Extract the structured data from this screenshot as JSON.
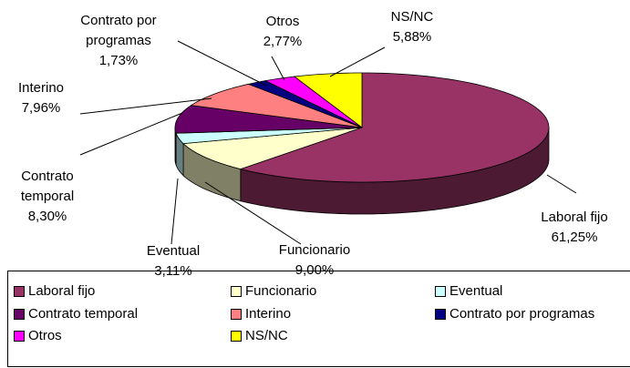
{
  "chart_data": {
    "type": "pie",
    "categories": [
      "Laboral fijo",
      "Funcionario",
      "Eventual",
      "Contrato temporal",
      "Interino",
      "Contrato por programas",
      "Otros",
      "NS/NC"
    ],
    "values": [
      61.25,
      9.0,
      3.11,
      8.3,
      7.96,
      1.73,
      2.77,
      5.88
    ],
    "value_labels": [
      "61,25%",
      "9,00%",
      "3,11%",
      "8,30%",
      "7,96%",
      "1,73%",
      "2,77%",
      "5,88%"
    ],
    "colors": [
      "#993366",
      "#FFFFCC",
      "#CCFFFF",
      "#660066",
      "#FF8080",
      "#000080",
      "#FF00FF",
      "#FFFF00"
    ],
    "legend": true
  }
}
